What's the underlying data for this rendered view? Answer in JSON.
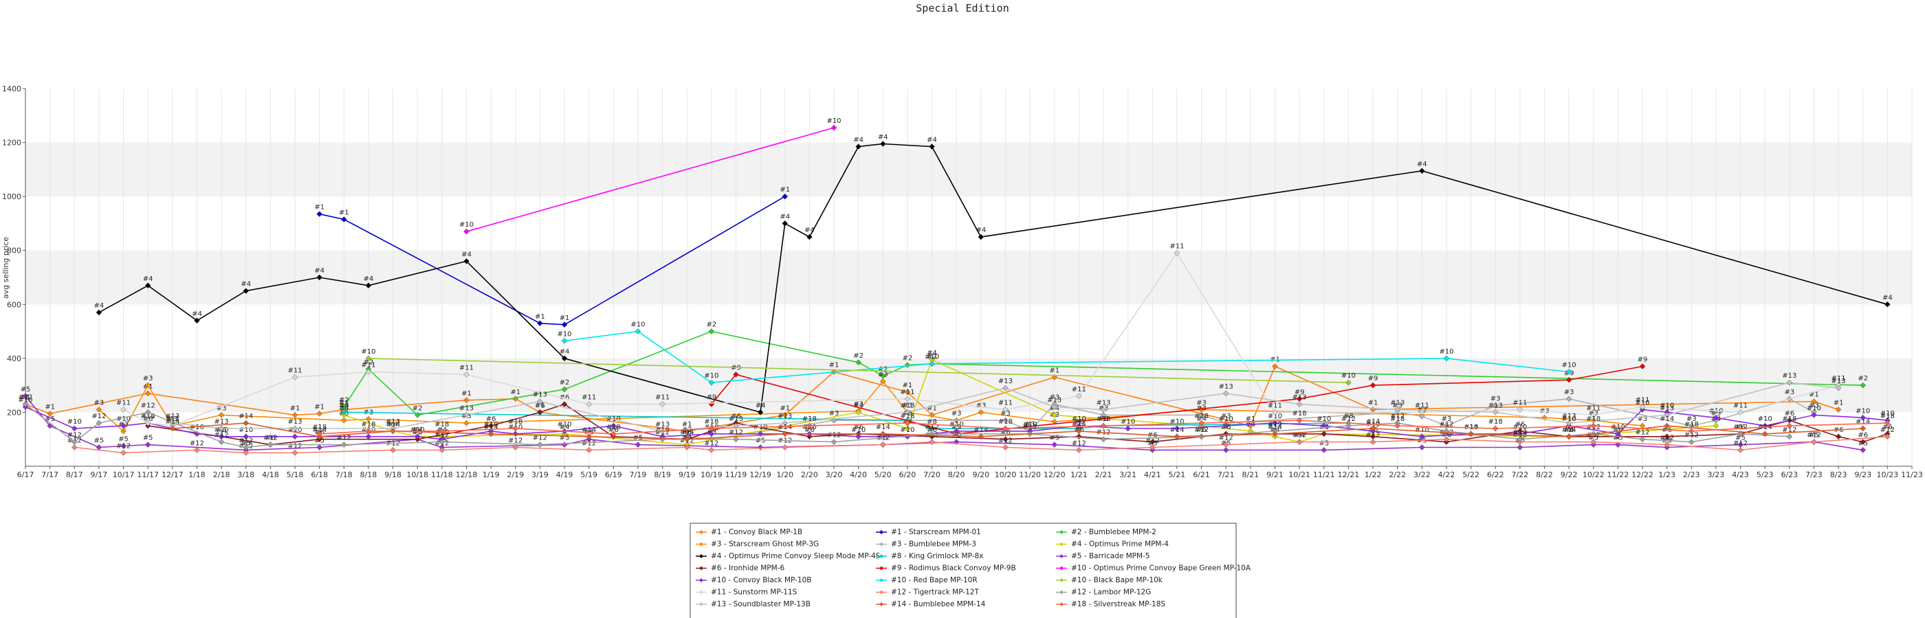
{
  "chart_data": {
    "type": "line",
    "title": "Special Edition",
    "xlabel": "",
    "ylabel": "avg selling price",
    "ylim": [
      0,
      1400
    ],
    "yticks": [
      200,
      400,
      600,
      800,
      1000,
      1200,
      1400
    ],
    "x_ticks": [
      "6/17",
      "7/17",
      "8/17",
      "9/17",
      "10/17",
      "11/17",
      "12/17",
      "1/18",
      "2/18",
      "3/18",
      "4/18",
      "5/18",
      "6/18",
      "7/18",
      "8/18",
      "9/18",
      "10/18",
      "11/18",
      "12/18",
      "1/19",
      "2/19",
      "3/19",
      "4/19",
      "5/19",
      "6/19",
      "7/19",
      "8/19",
      "9/19",
      "10/19",
      "11/19",
      "12/19",
      "1/20",
      "2/20",
      "3/20",
      "4/20",
      "5/20",
      "6/20",
      "7/20",
      "8/20",
      "9/20",
      "10/20",
      "11/20",
      "12/20",
      "1/21",
      "2/21",
      "3/21",
      "4/21",
      "5/21",
      "6/21",
      "7/21",
      "8/21",
      "9/21",
      "10/21",
      "11/21",
      "12/21",
      "1/22",
      "2/22",
      "3/22",
      "4/22",
      "5/22",
      "6/22",
      "7/22",
      "8/22",
      "9/22",
      "10/22",
      "11/22",
      "12/22",
      "1/23",
      "2/23",
      "3/23",
      "4/23",
      "5/23",
      "6/23",
      "7/23",
      "8/23",
      "9/23",
      "10/23",
      "11/23"
    ],
    "grid": true,
    "legend_position": "bottom-center",
    "series": [
      {
        "name": "#1 - Convoy Black MP-1B",
        "label": "#1",
        "color": "#ff7f0e",
        "x": [
          0,
          1,
          5,
          11,
          12,
          13,
          18,
          20,
          21,
          27,
          31,
          33,
          36,
          37,
          42,
          50,
          51,
          55,
          73,
          74
        ],
        "y": [
          230,
          195,
          270,
          190,
          195,
          210,
          245,
          250,
          200,
          130,
          190,
          350,
          275,
          190,
          330,
          150,
          370,
          210,
          240,
          210
        ]
      },
      {
        "name": "#1 - Starscream MPM-01",
        "label": "#1",
        "color": "#0000cd",
        "x": [
          12,
          13,
          21,
          22,
          31
        ],
        "y": [
          935,
          915,
          530,
          525,
          1000
        ]
      },
      {
        "name": "#2 - Bumblebee MPM-2",
        "label": "#2",
        "color": "#2ecc2e",
        "x": [
          13,
          14,
          16,
          22,
          28,
          34,
          35,
          36,
          37,
          75
        ],
        "y": [
          220,
          360,
          190,
          285,
          500,
          385,
          335,
          375,
          380,
          300
        ]
      },
      {
        "name": "#3 - Starscream Ghost MP-3G",
        "label": "#3",
        "color": "#ff8c00",
        "x": [
          3,
          4,
          5,
          6,
          8,
          13,
          14,
          18,
          34,
          35,
          36,
          38,
          39,
          42,
          48,
          62,
          64,
          66
        ],
        "y": [
          210,
          130,
          300,
          150,
          190,
          170,
          175,
          160,
          205,
          315,
          200,
          170,
          200,
          165,
          210,
          180,
          170,
          150
        ]
      },
      {
        "name": "#3 - Bumblebee MPM-3",
        "label": "#3",
        "color": "#b0b0b0",
        "x": [
          27,
          28,
          33,
          40,
          41,
          42,
          44,
          48,
          49,
          56,
          57,
          58,
          60,
          63,
          68,
          69,
          72,
          73
        ],
        "y": [
          110,
          100,
          170,
          170,
          130,
          230,
          190,
          190,
          160,
          200,
          185,
          150,
          225,
          250,
          150,
          170,
          250,
          200
        ]
      },
      {
        "name": "#4 - Optimus Prime MPM-4",
        "label": "#4",
        "color": "#d4d400",
        "x": [
          13,
          15,
          16,
          17,
          22,
          27,
          34,
          36,
          37,
          42,
          48,
          50,
          51,
          52,
          53,
          63,
          69
        ],
        "y": [
          190,
          130,
          110,
          110,
          120,
          80,
          200,
          140,
          395,
          190,
          150,
          130,
          110,
          90,
          120,
          110,
          150
        ]
      },
      {
        "name": "#4 - Optimus Prime Convoy Sleep Mode MP-4S",
        "label": "#4",
        "color": "#000000",
        "x": [
          3,
          5,
          7,
          9,
          12,
          14,
          18,
          22,
          30,
          31,
          32,
          34,
          35,
          37,
          39,
          57,
          76
        ],
        "y": [
          570,
          670,
          540,
          650,
          700,
          670,
          760,
          400,
          200,
          900,
          850,
          1185,
          1195,
          1185,
          850,
          1095,
          600
        ]
      },
      {
        "name": "#8 - King Grimlock MP-8x",
        "label": "#8",
        "color": "#00cccc",
        "x": [
          13,
          36,
          37,
          43,
          44,
          54
        ],
        "y": [
          200,
          170,
          140,
          140,
          150,
          160
        ]
      },
      {
        "name": "#5 - Barricade MPM-5",
        "label": "#5",
        "color": "#9932cc",
        "x": [
          0,
          1,
          3,
          4,
          5,
          9,
          12,
          16,
          17,
          22,
          23,
          25,
          30,
          35,
          38,
          42,
          46,
          49,
          53,
          57,
          61,
          64,
          65,
          67,
          70,
          73,
          75
        ],
        "y": [
          260,
          150,
          70,
          75,
          80,
          60,
          70,
          100,
          70,
          80,
          100,
          80,
          70,
          80,
          90,
          80,
          60,
          60,
          60,
          70,
          70,
          80,
          80,
          70,
          80,
          90,
          60
        ]
      },
      {
        "name": "#6 - Ironhide MPM-6",
        "label": "#6",
        "color": "#8b1a1a",
        "x": [
          5,
          8,
          10,
          12,
          16,
          19,
          21,
          22,
          24,
          27,
          29,
          32,
          34,
          37,
          40,
          43,
          46,
          48,
          49,
          53,
          55,
          58,
          61,
          63,
          65,
          67,
          70,
          72,
          74,
          75,
          76
        ],
        "y": [
          150,
          110,
          80,
          100,
          100,
          150,
          200,
          230,
          110,
          100,
          160,
          110,
          120,
          110,
          100,
          110,
          90,
          110,
          120,
          120,
          110,
          90,
          130,
          110,
          110,
          110,
          120,
          170,
          110,
          90,
          120
        ]
      },
      {
        "name": "#9 - Rodimus Black Convoy MP-9B",
        "label": "#9",
        "color": "#e60000",
        "x": [
          28,
          29,
          38,
          52,
          55,
          63,
          66
        ],
        "y": [
          230,
          340,
          120,
          250,
          300,
          320,
          370
        ]
      },
      {
        "name": "#10 - Optimus Prime Convoy Bape Green MP-10A",
        "label": "#10",
        "color": "#ff00ff",
        "x": [
          18,
          33
        ],
        "y": [
          870,
          1255
        ]
      },
      {
        "name": "#10 - Convoy Black MP-10B",
        "label": "#10",
        "color": "#8a2be2",
        "x": [
          0,
          2,
          4,
          5,
          7,
          8,
          9,
          11,
          14,
          16,
          17,
          19,
          20,
          22,
          24,
          26,
          28,
          30,
          32,
          34,
          36,
          38,
          41,
          43,
          45,
          47,
          49,
          51,
          53,
          55,
          57,
          59,
          61,
          63,
          65,
          66,
          67,
          69,
          71,
          73,
          75,
          76
        ],
        "y": [
          220,
          140,
          150,
          160,
          120,
          110,
          110,
          110,
          110,
          110,
          100,
          130,
          120,
          130,
          150,
          110,
          120,
          120,
          120,
          110,
          110,
          130,
          130,
          150,
          140,
          140,
          150,
          160,
          150,
          130,
          110,
          120,
          120,
          150,
          120,
          210,
          200,
          180,
          150,
          190,
          180,
          170
        ]
      },
      {
        "name": "#10 - Red Bape MP-10R",
        "label": "#10",
        "color": "#00e5ee",
        "x": [
          22,
          25,
          28,
          37,
          58,
          63
        ],
        "y": [
          465,
          500,
          310,
          380,
          400,
          350
        ]
      },
      {
        "name": "#10 - Black Bape MP-10k",
        "label": "#10",
        "color": "#9acd32",
        "x": [
          14,
          54
        ],
        "y": [
          400,
          310
        ]
      },
      {
        "name": "#11 - Sunstorm MP-11S",
        "label": "#11",
        "color": "#d9d9d9",
        "x": [
          4,
          5,
          6,
          11,
          14,
          18,
          23,
          26,
          36,
          40,
          43,
          47,
          51,
          57,
          61,
          64,
          66,
          70,
          74
        ],
        "y": [
          210,
          160,
          150,
          330,
          350,
          340,
          230,
          230,
          250,
          210,
          260,
          790,
          200,
          200,
          210,
          190,
          220,
          200,
          300
        ]
      },
      {
        "name": "#12 - Tigertrack MP-12T",
        "label": "#12",
        "color": "#fa8072",
        "x": [
          2,
          4,
          7,
          9,
          11,
          15,
          17,
          20,
          23,
          27,
          28,
          31,
          35,
          37,
          40,
          43,
          46,
          49,
          52,
          55,
          58,
          61,
          64,
          67,
          70,
          73,
          76
        ],
        "y": [
          70,
          50,
          60,
          50,
          50,
          60,
          60,
          70,
          60,
          70,
          60,
          70,
          80,
          90,
          70,
          60,
          70,
          80,
          90,
          90,
          100,
          90,
          90,
          80,
          60,
          90,
          110
        ]
      },
      {
        "name": "#12 - Lambor MP-12G",
        "label": "#12",
        "color": "#a0a0a0",
        "x": [
          0,
          2,
          3,
          5,
          8,
          9,
          10,
          13,
          17,
          21,
          26,
          29,
          33,
          37,
          41,
          44,
          48,
          51,
          54,
          56,
          58,
          61,
          64,
          66,
          68,
          70,
          72
        ],
        "y": [
          230,
          90,
          160,
          200,
          90,
          70,
          80,
          80,
          90,
          80,
          100,
          100,
          90,
          120,
          120,
          100,
          110,
          130,
          150,
          160,
          130,
          100,
          120,
          100,
          90,
          120,
          110
        ]
      },
      {
        "name": "#13 - Soundblaster MP-13B",
        "label": "#13",
        "color": "#c0c0c0",
        "x": [
          6,
          8,
          11,
          15,
          18,
          21,
          26,
          29,
          31,
          36,
          40,
          42,
          44,
          49,
          52,
          56,
          60,
          63,
          67,
          72,
          74
        ],
        "y": [
          160,
          140,
          140,
          140,
          190,
          240,
          130,
          150,
          160,
          200,
          290,
          220,
          210,
          270,
          230,
          210,
          200,
          160,
          190,
          310,
          290
        ]
      },
      {
        "name": "#14 - Bumblebee MPM-14",
        "label": "#14",
        "color": "#dc5a2a",
        "x": [
          6,
          9,
          12,
          15,
          19,
          23,
          27,
          31,
          35,
          39,
          43,
          47,
          51,
          55,
          59,
          63,
          67,
          71,
          75
        ],
        "y": [
          140,
          160,
          110,
          130,
          120,
          110,
          100,
          120,
          120,
          110,
          130,
          110,
          120,
          140,
          120,
          110,
          150,
          120,
          140
        ]
      },
      {
        "name": "#18 - Silverstreak MP-18S",
        "label": "#18",
        "color": "#ff6347",
        "x": [
          12,
          14,
          17,
          20,
          24,
          28,
          32,
          36,
          40,
          44,
          48,
          52,
          56,
          60,
          64,
          68,
          72,
          76
        ],
        "y": [
          120,
          130,
          130,
          140,
          120,
          140,
          150,
          160,
          140,
          150,
          160,
          170,
          150,
          140,
          150,
          130,
          150,
          160
        ]
      }
    ]
  }
}
